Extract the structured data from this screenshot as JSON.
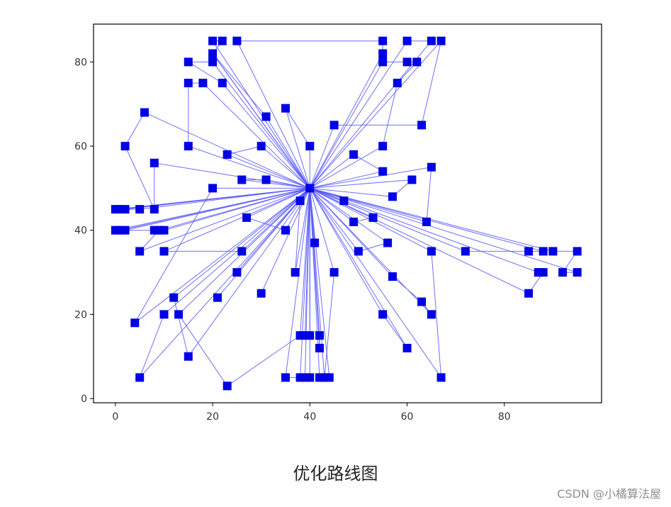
{
  "caption": "优化路线图",
  "watermark": "CSDN @小橘算法屋",
  "chart_data": {
    "type": "line",
    "title": "",
    "xlabel": "",
    "ylabel": "",
    "xlim": [
      -4.5,
      100
    ],
    "ylim": [
      -1,
      89
    ],
    "xticks": [
      0,
      20,
      40,
      60,
      80
    ],
    "yticks": [
      0,
      20,
      40,
      60,
      80
    ],
    "grid": false,
    "line_color": "#5555ff",
    "marker_color": "#0000e6",
    "marker": "square",
    "depot": [
      40,
      50
    ],
    "routes": [
      [
        [
          40,
          50
        ],
        [
          25,
          85
        ],
        [
          55,
          85
        ],
        [
          55,
          82
        ],
        [
          40,
          50
        ]
      ],
      [
        [
          40,
          50
        ],
        [
          55,
          80
        ],
        [
          60,
          80
        ],
        [
          62,
          80
        ],
        [
          58,
          75
        ],
        [
          55,
          60
        ],
        [
          40,
          50
        ]
      ],
      [
        [
          40,
          50
        ],
        [
          60,
          85
        ],
        [
          65,
          85
        ],
        [
          40,
          50
        ]
      ],
      [
        [
          40,
          50
        ],
        [
          67,
          85
        ],
        [
          63,
          65
        ],
        [
          45,
          65
        ],
        [
          40,
          50
        ]
      ],
      [
        [
          40,
          50
        ],
        [
          20,
          85
        ],
        [
          22,
          85
        ],
        [
          20,
          82
        ],
        [
          40,
          50
        ]
      ],
      [
        [
          40,
          50
        ],
        [
          20,
          80
        ],
        [
          15,
          80
        ],
        [
          22,
          75
        ],
        [
          40,
          50
        ]
      ],
      [
        [
          40,
          50
        ],
        [
          18,
          75
        ],
        [
          15,
          75
        ],
        [
          15,
          60
        ],
        [
          40,
          50
        ]
      ],
      [
        [
          40,
          50
        ],
        [
          35,
          69
        ],
        [
          40,
          60
        ],
        [
          40,
          50
        ]
      ],
      [
        [
          40,
          50
        ],
        [
          31,
          67
        ],
        [
          20,
          82
        ],
        [
          40,
          50
        ]
      ],
      [
        [
          40,
          50
        ],
        [
          23,
          58
        ],
        [
          30,
          60
        ],
        [
          40,
          50
        ]
      ],
      [
        [
          40,
          50
        ],
        [
          6,
          68
        ],
        [
          2,
          60
        ],
        [
          8,
          45
        ],
        [
          8,
          56
        ],
        [
          40,
          50
        ]
      ],
      [
        [
          40,
          50
        ],
        [
          0,
          45
        ],
        [
          2,
          45
        ],
        [
          40,
          50
        ]
      ],
      [
        [
          40,
          50
        ],
        [
          1,
          45
        ],
        [
          5,
          45
        ],
        [
          40,
          50
        ]
      ],
      [
        [
          40,
          50
        ],
        [
          0,
          40
        ],
        [
          2,
          40
        ],
        [
          40,
          50
        ]
      ],
      [
        [
          40,
          50
        ],
        [
          1,
          40
        ],
        [
          8,
          40
        ],
        [
          10,
          40
        ],
        [
          40,
          50
        ]
      ],
      [
        [
          40,
          50
        ],
        [
          9,
          40
        ],
        [
          5,
          35
        ],
        [
          40,
          50
        ]
      ],
      [
        [
          40,
          50
        ],
        [
          10,
          35
        ],
        [
          26,
          35
        ],
        [
          40,
          50
        ]
      ],
      [
        [
          40,
          50
        ],
        [
          26,
          52
        ],
        [
          31,
          52
        ],
        [
          40,
          50
        ]
      ],
      [
        [
          40,
          50
        ],
        [
          20,
          50
        ],
        [
          4,
          18
        ],
        [
          40,
          50
        ]
      ],
      [
        [
          40,
          50
        ],
        [
          27,
          43
        ],
        [
          35,
          40
        ],
        [
          40,
          50
        ]
      ],
      [
        [
          40,
          50
        ],
        [
          25,
          30
        ],
        [
          40,
          50
        ]
      ],
      [
        [
          40,
          50
        ],
        [
          30,
          25
        ],
        [
          40,
          50
        ]
      ],
      [
        [
          40,
          50
        ],
        [
          21,
          24
        ],
        [
          40,
          50
        ]
      ],
      [
        [
          40,
          50
        ],
        [
          38,
          47
        ],
        [
          37,
          30
        ],
        [
          40,
          50
        ]
      ],
      [
        [
          40,
          50
        ],
        [
          41,
          37
        ],
        [
          40,
          50
        ]
      ],
      [
        [
          40,
          50
        ],
        [
          12,
          24
        ],
        [
          15,
          10
        ],
        [
          40,
          50
        ]
      ],
      [
        [
          40,
          50
        ],
        [
          10,
          20
        ],
        [
          5,
          5
        ],
        [
          40,
          50
        ]
      ],
      [
        [
          40,
          50
        ],
        [
          38,
          15
        ],
        [
          23,
          3
        ],
        [
          13,
          20
        ],
        [
          40,
          50
        ]
      ],
      [
        [
          40,
          50
        ],
        [
          39,
          15
        ],
        [
          40,
          15
        ],
        [
          40,
          50
        ]
      ],
      [
        [
          40,
          50
        ],
        [
          42,
          15
        ],
        [
          42,
          12
        ],
        [
          40,
          50
        ]
      ],
      [
        [
          40,
          50
        ],
        [
          35,
          5
        ],
        [
          39,
          5
        ],
        [
          40,
          50
        ]
      ],
      [
        [
          40,
          50
        ],
        [
          38,
          5
        ],
        [
          40,
          5
        ],
        [
          40,
          50
        ]
      ],
      [
        [
          40,
          50
        ],
        [
          42,
          5
        ],
        [
          44,
          5
        ],
        [
          40,
          50
        ]
      ],
      [
        [
          40,
          50
        ],
        [
          43,
          5
        ],
        [
          45,
          30
        ],
        [
          40,
          50
        ]
      ],
      [
        [
          40,
          50
        ],
        [
          47,
          47
        ],
        [
          40,
          50
        ]
      ],
      [
        [
          40,
          50
        ],
        [
          49,
          58
        ],
        [
          55,
          54
        ],
        [
          40,
          50
        ]
      ],
      [
        [
          40,
          50
        ],
        [
          53,
          43
        ],
        [
          49,
          42
        ],
        [
          40,
          50
        ]
      ],
      [
        [
          40,
          50
        ],
        [
          57,
          48
        ],
        [
          61,
          52
        ],
        [
          40,
          50
        ]
      ],
      [
        [
          40,
          50
        ],
        [
          65,
          55
        ],
        [
          64,
          42
        ],
        [
          40,
          50
        ]
      ],
      [
        [
          40,
          50
        ],
        [
          50,
          35
        ],
        [
          56,
          37
        ],
        [
          40,
          50
        ]
      ],
      [
        [
          40,
          50
        ],
        [
          55,
          20
        ],
        [
          60,
          12
        ],
        [
          40,
          50
        ]
      ],
      [
        [
          40,
          50
        ],
        [
          57,
          29
        ],
        [
          63,
          23
        ],
        [
          65,
          20
        ],
        [
          40,
          50
        ]
      ],
      [
        [
          40,
          50
        ],
        [
          65,
          35
        ],
        [
          67,
          5
        ],
        [
          40,
          50
        ]
      ],
      [
        [
          40,
          50
        ],
        [
          72,
          35
        ],
        [
          85,
          35
        ],
        [
          88,
          35
        ],
        [
          40,
          50
        ]
      ],
      [
        [
          40,
          50
        ],
        [
          90,
          35
        ],
        [
          95,
          35
        ],
        [
          92,
          30
        ],
        [
          95,
          30
        ],
        [
          40,
          50
        ]
      ],
      [
        [
          40,
          50
        ],
        [
          87,
          30
        ],
        [
          88,
          30
        ],
        [
          85,
          25
        ],
        [
          40,
          50
        ]
      ]
    ]
  }
}
